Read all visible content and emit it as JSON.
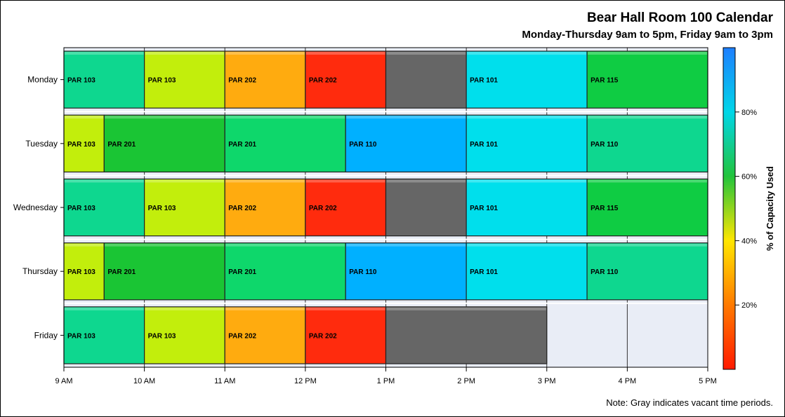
{
  "chart_data": {
    "type": "bar",
    "subtype": "calendar-timeline",
    "title": "Bear Hall Room 100 Calendar",
    "subtitle": "Monday-Thursday 9am to 5pm, Friday 9am to 3pm",
    "note": "Note: Gray indicates vacant time periods.",
    "x_range": [
      9,
      17
    ],
    "x_ticks": [
      {
        "value": 9,
        "label": "9 AM"
      },
      {
        "value": 10,
        "label": "10 AM"
      },
      {
        "value": 11,
        "label": "11 AM"
      },
      {
        "value": 12,
        "label": "12 PM"
      },
      {
        "value": 13,
        "label": "1 PM"
      },
      {
        "value": 14,
        "label": "2 PM"
      },
      {
        "value": 15,
        "label": "3 PM"
      },
      {
        "value": 16,
        "label": "4 PM"
      },
      {
        "value": 17,
        "label": "5 PM"
      }
    ],
    "categories": [
      "Monday",
      "Tuesday",
      "Wednesday",
      "Thursday",
      "Friday"
    ],
    "colorbar": {
      "label": "% of Capacity Used",
      "ticks": [
        {
          "value": 20,
          "label": "20%"
        },
        {
          "value": 40,
          "label": "40%"
        },
        {
          "value": 60,
          "label": "60%"
        },
        {
          "value": 80,
          "label": "80%"
        }
      ],
      "range": [
        0,
        100
      ],
      "stops": [
        "#ff1a00",
        "#ff7a00",
        "#ffe600",
        "#22c43c",
        "#00d6e8",
        "#1e7fff"
      ]
    },
    "vacant_color": "#666666",
    "unscheduled_color": "#e9edf6",
    "rows": [
      {
        "day": "Monday",
        "blocks": [
          {
            "start": 9,
            "end": 10,
            "label": "PAR 103",
            "color": "#0ed78f"
          },
          {
            "start": 10,
            "end": 11,
            "label": "PAR 103",
            "color": "#c2ee0c"
          },
          {
            "start": 11,
            "end": 12,
            "label": "PAR 202",
            "color": "#ffab0f"
          },
          {
            "start": 12,
            "end": 13,
            "label": "PAR 202",
            "color": "#ff2b0d"
          },
          {
            "start": 13,
            "end": 14,
            "label": "",
            "color": "#666666"
          },
          {
            "start": 14,
            "end": 15.5,
            "label": "PAR 101",
            "color": "#00dfec"
          },
          {
            "start": 15.5,
            "end": 17,
            "label": "PAR 115",
            "color": "#0fcc43"
          }
        ]
      },
      {
        "day": "Tuesday",
        "blocks": [
          {
            "start": 9,
            "end": 9.5,
            "label": "PAR 103",
            "color": "#c2ee0c"
          },
          {
            "start": 9.5,
            "end": 11,
            "label": "PAR 201",
            "color": "#1ac534"
          },
          {
            "start": 11,
            "end": 12.5,
            "label": "PAR 201",
            "color": "#0ed76b"
          },
          {
            "start": 12.5,
            "end": 14,
            "label": "PAR 110",
            "color": "#00b0ff"
          },
          {
            "start": 14,
            "end": 15.5,
            "label": "PAR 101",
            "color": "#00dfec"
          },
          {
            "start": 15.5,
            "end": 17,
            "label": "PAR 110",
            "color": "#0ed78f"
          }
        ]
      },
      {
        "day": "Wednesday",
        "blocks": [
          {
            "start": 9,
            "end": 10,
            "label": "PAR 103",
            "color": "#0ed78f"
          },
          {
            "start": 10,
            "end": 11,
            "label": "PAR 103",
            "color": "#c2ee0c"
          },
          {
            "start": 11,
            "end": 12,
            "label": "PAR 202",
            "color": "#ffab0f"
          },
          {
            "start": 12,
            "end": 13,
            "label": "PAR 202",
            "color": "#ff2b0d"
          },
          {
            "start": 13,
            "end": 14,
            "label": "",
            "color": "#666666"
          },
          {
            "start": 14,
            "end": 15.5,
            "label": "PAR 101",
            "color": "#00dfec"
          },
          {
            "start": 15.5,
            "end": 17,
            "label": "PAR 115",
            "color": "#0fcc43"
          }
        ]
      },
      {
        "day": "Thursday",
        "blocks": [
          {
            "start": 9,
            "end": 9.5,
            "label": "PAR 103",
            "color": "#c2ee0c"
          },
          {
            "start": 9.5,
            "end": 11,
            "label": "PAR 201",
            "color": "#1ac534"
          },
          {
            "start": 11,
            "end": 12.5,
            "label": "PAR 201",
            "color": "#0ed76b"
          },
          {
            "start": 12.5,
            "end": 14,
            "label": "PAR 110",
            "color": "#00b0ff"
          },
          {
            "start": 14,
            "end": 15.5,
            "label": "PAR 101",
            "color": "#00dfec"
          },
          {
            "start": 15.5,
            "end": 17,
            "label": "PAR 110",
            "color": "#0ed78f"
          }
        ]
      },
      {
        "day": "Friday",
        "blocks": [
          {
            "start": 9,
            "end": 10,
            "label": "PAR 103",
            "color": "#0ed78f"
          },
          {
            "start": 10,
            "end": 11,
            "label": "PAR 103",
            "color": "#c2ee0c"
          },
          {
            "start": 11,
            "end": 12,
            "label": "PAR 202",
            "color": "#ffab0f"
          },
          {
            "start": 12,
            "end": 13,
            "label": "PAR 202",
            "color": "#ff2b0d"
          },
          {
            "start": 13,
            "end": 15,
            "label": "",
            "color": "#666666"
          }
        ]
      }
    ]
  }
}
